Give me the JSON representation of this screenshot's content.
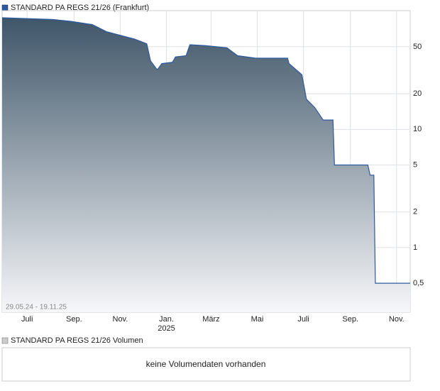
{
  "chart_data": {
    "type": "area",
    "log_scale": true,
    "grid": true,
    "period_label": "29.05.24 - 19.11.25",
    "series": [
      {
        "name": "STANDARD PA REGS 21/26 (Frankfurt)",
        "color": "#2c5aa0",
        "x": [
          "2024-05-29",
          "2024-08-04",
          "2024-08-28",
          "2024-09-25",
          "2024-10-14",
          "2024-11-20",
          "2024-12-06",
          "2024-12-11",
          "2024-12-18",
          "2024-12-20",
          "2024-12-26",
          "2025-01-09",
          "2025-01-13",
          "2025-01-27",
          "2025-02-01",
          "2025-02-22",
          "2025-03-22",
          "2025-04-05",
          "2025-04-29",
          "2025-06-10",
          "2025-06-12",
          "2025-06-29",
          "2025-07-05",
          "2025-07-16",
          "2025-07-27",
          "2025-08-09",
          "2025-08-11",
          "2025-09-24",
          "2025-09-27",
          "2025-10-02",
          "2025-10-04",
          "2025-11-19"
        ],
        "values": [
          88,
          85,
          82,
          77,
          67,
          58,
          53,
          38,
          33,
          32,
          36,
          37,
          41,
          42,
          52,
          51,
          49,
          42,
          40,
          40,
          36,
          29,
          18,
          15.3,
          12,
          12,
          5,
          5,
          4.1,
          4.1,
          0.5,
          0.5
        ]
      }
    ],
    "xlim": [
      "2024-05-29",
      "2025-11-19"
    ],
    "xticks": [
      {
        "value": "2024-07-01",
        "label": "Juli"
      },
      {
        "value": "2024-09-01",
        "label": "Sep."
      },
      {
        "value": "2024-11-01",
        "label": "Nov."
      },
      {
        "value": "2025-01-01",
        "label": "Jan.\n2025"
      },
      {
        "value": "2025-03-01",
        "label": "März"
      },
      {
        "value": "2025-05-01",
        "label": "Mai"
      },
      {
        "value": "2025-07-01",
        "label": "Juli"
      },
      {
        "value": "2025-09-01",
        "label": "Sep."
      },
      {
        "value": "2025-11-01",
        "label": "Nov."
      }
    ],
    "ylim": [
      0.284,
      101
    ],
    "yticks": [
      {
        "value": 0.5,
        "label": "0,5"
      },
      1,
      2,
      5,
      10,
      20,
      50
    ]
  },
  "volume_panel": {
    "title": "STANDARD PA REGS 21/26 Volumen",
    "message": "keine Volumendaten vorhanden"
  }
}
